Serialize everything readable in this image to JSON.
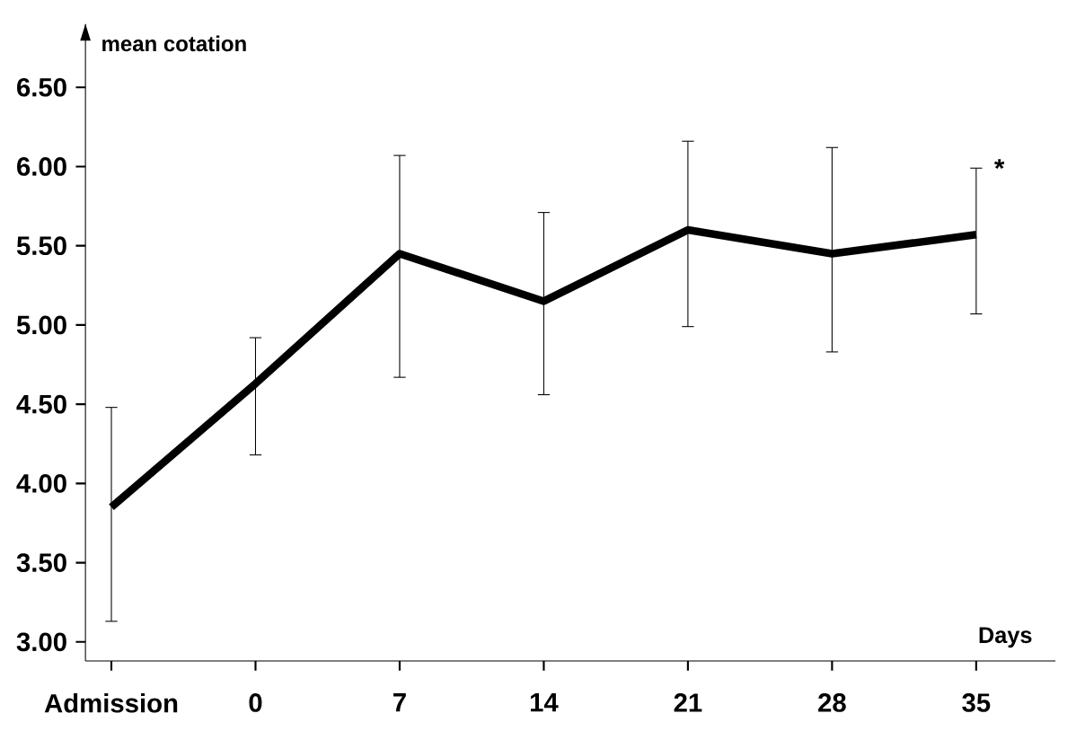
{
  "chart_data": {
    "type": "line",
    "xlabel": "Days",
    "ylabel": "mean cotation",
    "categories": [
      "Admission",
      "0",
      "7",
      "14",
      "21",
      "28",
      "35"
    ],
    "values": [
      3.85,
      4.63,
      5.45,
      5.15,
      5.6,
      5.45,
      5.57
    ],
    "errors": [
      [
        3.13,
        4.48
      ],
      [
        4.18,
        4.92
      ],
      [
        4.67,
        6.07
      ],
      [
        4.56,
        5.71
      ],
      [
        4.99,
        6.16
      ],
      [
        4.83,
        6.12
      ],
      [
        5.07,
        5.99
      ]
    ],
    "color": "#000000",
    "marker": "none",
    "grid": false,
    "ylim": [
      2.88,
      6.9
    ],
    "yticks": [
      {
        "value": 3.0,
        "label": "3.00"
      },
      {
        "value": 3.5,
        "label": "3.50"
      },
      {
        "value": 4.0,
        "label": "4.00"
      },
      {
        "value": 4.5,
        "label": "4.50"
      },
      {
        "value": 5.0,
        "label": "5.00"
      },
      {
        "value": 5.5,
        "label": "5.50"
      },
      {
        "value": 6.0,
        "label": "6.00"
      },
      {
        "value": 6.5,
        "label": "6.50"
      }
    ],
    "annotations": [
      {
        "text": "*",
        "x": "35",
        "y": 5.99
      }
    ]
  }
}
